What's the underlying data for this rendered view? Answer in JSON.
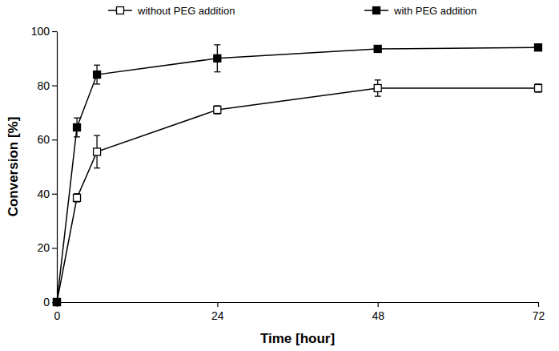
{
  "chart_data": {
    "type": "line",
    "x_label": "Time [hour]",
    "y_label": "Conversion [%]",
    "x": [
      0,
      3,
      6,
      24,
      48,
      72
    ],
    "series": [
      {
        "name": "without PEG addition",
        "color": "#000000",
        "marker": "square-open",
        "line_style": "solid",
        "values": [
          0,
          38.5,
          55.5,
          71,
          79,
          79
        ],
        "errors": [
          0,
          1.5,
          6,
          1.5,
          3,
          1.5
        ]
      },
      {
        "name": "with PEG addition",
        "color": "#000000",
        "marker": "square",
        "line_style": "solid",
        "values": [
          0,
          64.5,
          84,
          90,
          93.5,
          94
        ],
        "errors": [
          0,
          3.5,
          3.5,
          5,
          1,
          1
        ]
      }
    ],
    "xlim": [
      0,
      72
    ],
    "xticks": [
      0,
      24,
      48,
      72
    ],
    "ylim": [
      0,
      100
    ],
    "yticks": [
      0,
      20,
      40,
      60,
      80,
      100
    ],
    "grid": false,
    "legend": "top"
  }
}
